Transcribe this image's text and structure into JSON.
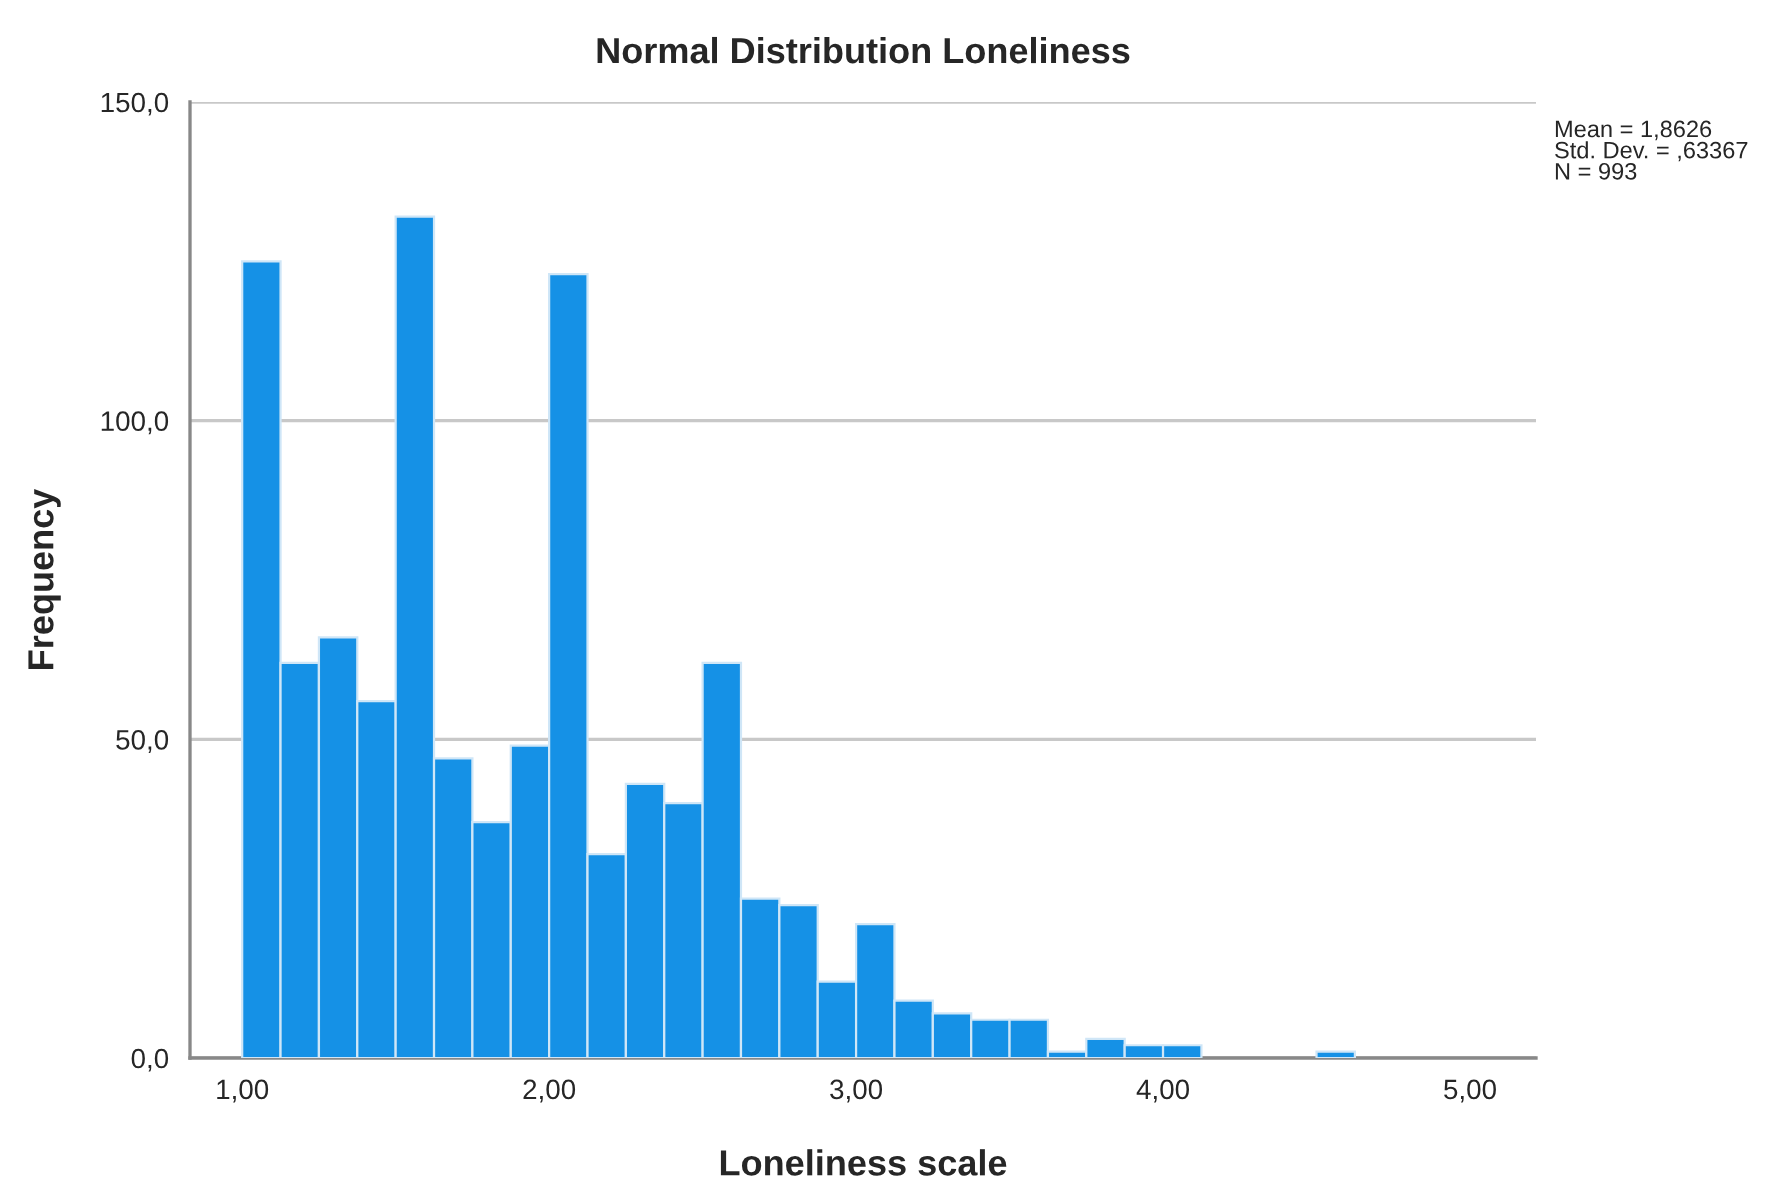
{
  "chart_data": {
    "type": "histogram",
    "title": "Normal Distribution Loneliness",
    "xlabel": "Loneliness scale",
    "ylabel": "Frequency",
    "bins": [
      1.0,
      1.125,
      1.25,
      1.375,
      1.5,
      1.625,
      1.75,
      1.875,
      2.0,
      2.125,
      2.25,
      2.375,
      2.5,
      2.625,
      2.75,
      2.875,
      3.0,
      3.125,
      3.25,
      3.375,
      3.5,
      3.625,
      3.75,
      3.875,
      4.0,
      4.125,
      4.25,
      4.375,
      4.5,
      4.625,
      4.75,
      4.875,
      5.0
    ],
    "values": [
      125,
      62,
      66,
      56,
      132,
      47,
      37,
      49,
      123,
      32,
      43,
      40,
      62,
      25,
      24,
      12,
      21,
      9,
      7,
      6,
      6,
      1,
      3,
      2,
      2,
      0,
      0,
      0,
      1,
      0,
      0,
      0
    ],
    "color": "#1591e6",
    "xlim": [
      0.83,
      5.215
    ],
    "xticks": [
      {
        "value": 1,
        "label": "1,00"
      },
      {
        "value": 2,
        "label": "2,00"
      },
      {
        "value": 3,
        "label": "3,00"
      },
      {
        "value": 4,
        "label": "4,00"
      },
      {
        "value": 5,
        "label": "5,00"
      }
    ],
    "ylim": [
      0,
      150
    ],
    "yticks": [
      {
        "value": 0,
        "label": "0,0"
      },
      {
        "value": 50,
        "label": "50,0"
      },
      {
        "value": 100,
        "label": "100,0"
      },
      {
        "value": 150,
        "label": "150,0"
      }
    ],
    "grid": "y",
    "annotations": [
      "Mean = 1,8626\nStd. Dev. = ,63367\nN = 993"
    ]
  }
}
